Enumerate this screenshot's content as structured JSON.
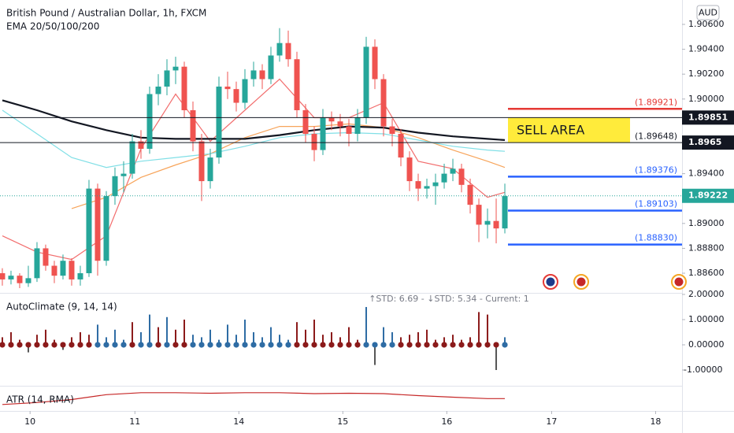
{
  "chart_data": [
    {
      "type": "candlestick",
      "title": "British Pound / Australian Dollar, 1h, FXCM",
      "subtitle": "EMA 20/50/100/200",
      "currency": "AUD",
      "up_color": "#26a69a",
      "down_color": "#ef5350",
      "xlim": [
        -0.27,
        78.45
      ],
      "xticks": [
        {
          "value": 3.2,
          "label": "10"
        },
        {
          "value": 15.3,
          "label": "11"
        },
        {
          "value": 27.3,
          "label": "14"
        },
        {
          "value": 39.3,
          "label": "15"
        },
        {
          "value": 51.3,
          "label": "16"
        },
        {
          "value": 63.4,
          "label": "17"
        },
        {
          "value": 75.4,
          "label": "18"
        }
      ],
      "ylim": [
        1.88442,
        1.90796
      ],
      "yticks": [
        {
          "value": 1.906,
          "label": "1.90600"
        },
        {
          "value": 1.904,
          "label": "1.90400"
        },
        {
          "value": 1.902,
          "label": "1.90200"
        },
        {
          "value": 1.9,
          "label": "1.90000"
        },
        {
          "value": 1.894,
          "label": "1.89400"
        },
        {
          "value": 1.89,
          "label": "1.89000"
        },
        {
          "value": 1.888,
          "label": "1.88800"
        },
        {
          "value": 1.886,
          "label": "1.88600"
        }
      ],
      "candles": [
        [
          1.886,
          1.8864,
          1.885,
          1.8855
        ],
        [
          1.8855,
          1.8862,
          1.8851,
          1.8858
        ],
        [
          1.8858,
          1.886,
          1.8848,
          1.8852
        ],
        [
          1.8852,
          1.8866,
          1.8849,
          1.8856
        ],
        [
          1.8856,
          1.8885,
          1.8853,
          1.888
        ],
        [
          1.888,
          1.8883,
          1.8862,
          1.8866
        ],
        [
          1.8866,
          1.887,
          1.8852,
          1.8858
        ],
        [
          1.8858,
          1.8875,
          1.8855,
          1.887
        ],
        [
          1.887,
          1.8872,
          1.885,
          1.8855
        ],
        [
          1.8855,
          1.8866,
          1.885,
          1.886
        ],
        [
          1.886,
          1.8935,
          1.8857,
          1.8928
        ],
        [
          1.8928,
          1.8932,
          1.8858,
          1.887
        ],
        [
          1.887,
          1.8926,
          1.8866,
          1.8922
        ],
        [
          1.8922,
          1.8945,
          1.8915,
          1.8938
        ],
        [
          1.8938,
          1.895,
          1.8925,
          1.894
        ],
        [
          1.894,
          1.8972,
          1.8936,
          1.8966
        ],
        [
          1.8966,
          1.8975,
          1.8952,
          1.896
        ],
        [
          1.896,
          1.901,
          1.8956,
          1.9004
        ],
        [
          1.9004,
          1.902,
          1.8995,
          1.901
        ],
        [
          1.901,
          1.9032,
          1.9003,
          1.9023
        ],
        [
          1.9023,
          1.9034,
          1.9012,
          1.9026
        ],
        [
          1.9026,
          1.903,
          1.8985,
          1.8991
        ],
        [
          1.8991,
          1.8998,
          1.8958,
          1.8966
        ],
        [
          1.8966,
          1.8972,
          1.8918,
          1.8934
        ],
        [
          1.8934,
          1.896,
          1.8928,
          1.8953
        ],
        [
          1.8953,
          1.9018,
          1.8948,
          1.901
        ],
        [
          1.901,
          1.9022,
          1.9,
          1.9008
        ],
        [
          1.9008,
          1.9014,
          1.899,
          1.8997
        ],
        [
          1.8997,
          1.9024,
          1.8992,
          1.9016
        ],
        [
          1.9016,
          1.903,
          1.901,
          1.9023
        ],
        [
          1.9023,
          1.9028,
          1.9008,
          1.9016
        ],
        [
          1.9016,
          1.9042,
          1.9012,
          1.9035
        ],
        [
          1.9035,
          1.9057,
          1.903,
          1.9045
        ],
        [
          1.9045,
          1.9055,
          1.9026,
          1.9032
        ],
        [
          1.9032,
          1.9038,
          1.8985,
          1.8991
        ],
        [
          1.8991,
          1.8996,
          1.8965,
          1.8972
        ],
        [
          1.8972,
          1.8978,
          1.895,
          1.8959
        ],
        [
          1.8959,
          1.8992,
          1.8955,
          1.8985
        ],
        [
          1.8985,
          1.899,
          1.8975,
          1.8982
        ],
        [
          1.8982,
          1.8988,
          1.897,
          1.8978
        ],
        [
          1.8978,
          1.8984,
          1.8962,
          1.8972
        ],
        [
          1.8972,
          1.8992,
          1.8966,
          1.8985
        ],
        [
          1.8985,
          1.905,
          1.898,
          1.9042
        ],
        [
          1.9042,
          1.9048,
          1.9008,
          1.9016
        ],
        [
          1.9016,
          1.902,
          1.897,
          1.8978
        ],
        [
          1.8978,
          1.8984,
          1.8962,
          1.8972
        ],
        [
          1.8972,
          1.8976,
          1.8946,
          1.8953
        ],
        [
          1.8953,
          1.8958,
          1.8926,
          1.8934
        ],
        [
          1.8934,
          1.894,
          1.8918,
          1.8928
        ],
        [
          1.8928,
          1.8936,
          1.892,
          1.893
        ],
        [
          1.893,
          1.894,
          1.8915,
          1.8933
        ],
        [
          1.8933,
          1.8948,
          1.8928,
          1.894
        ],
        [
          1.894,
          1.8952,
          1.8934,
          1.8944
        ],
        [
          1.8944,
          1.8948,
          1.8925,
          1.8931
        ],
        [
          1.8931,
          1.8936,
          1.8908,
          1.8915
        ],
        [
          1.8915,
          1.892,
          1.8885,
          1.8899
        ],
        [
          1.8899,
          1.8912,
          1.8888,
          1.8902
        ],
        [
          1.8902,
          1.892,
          1.8884,
          1.8896
        ],
        [
          1.8896,
          1.8932,
          1.8892,
          1.8922
        ]
      ],
      "ema_x": [
        0,
        4,
        8,
        12,
        16,
        20,
        24,
        28,
        32,
        36,
        40,
        44,
        48,
        52,
        56,
        58
      ],
      "series": [
        {
          "color": "#f26d6d",
          "values": [
            1.889,
            1.8877,
            1.8871,
            1.889,
            1.896,
            1.9004,
            1.8966,
            1.8991,
            1.9016,
            1.8985,
            1.8985,
            1.8997,
            1.895,
            1.8944,
            1.8921,
            1.8925
          ]
        },
        {
          "color": "#f7a45a",
          "values": [
            null,
            null,
            1.8912,
            1.8921,
            1.8937,
            1.8947,
            1.8956,
            1.8969,
            1.8978,
            1.8978,
            1.898,
            1.8977,
            1.8969,
            1.8959,
            1.895,
            1.8945
          ]
        },
        {
          "color": "#80dfe6",
          "values": [
            1.8991,
            1.8972,
            1.8953,
            1.8945,
            1.895,
            1.8953,
            1.8956,
            1.8962,
            1.8969,
            1.8972,
            1.8973,
            1.8972,
            1.8967,
            1.8962,
            1.8959,
            1.8958
          ]
        },
        {
          "color": "#131722",
          "values": [
            1.8999,
            1.8991,
            1.8982,
            1.8975,
            1.8969,
            1.8968,
            1.8968,
            1.8968,
            1.8971,
            1.8975,
            1.8978,
            1.8977,
            1.8973,
            1.897,
            1.8968,
            1.8967
          ]
        }
      ],
      "hlines": [
        1.89851,
        1.8965
      ],
      "levels": [
        {
          "value": 1.89921,
          "label": "(1.89921)",
          "color": "#e53935"
        },
        {
          "value": 1.89648,
          "label": "(1.89648)"
        },
        {
          "value": 1.89376,
          "label": "(1.89376)",
          "color": "#2962ff"
        },
        {
          "value": 1.89103,
          "label": "(1.89103)",
          "color": "#2962ff"
        },
        {
          "value": 1.8883,
          "label": "(1.88830)",
          "color": "#2962ff"
        }
      ],
      "annotation": "SELL AREA",
      "annotation_color": "#ffeb3b",
      "last_price": 1.89222
    },
    {
      "type": "histogram",
      "title": "AutoClimate (9, 14, 14)",
      "status": "↑STD: 6.69 - ↓STD: 5.34 - Current: 1",
      "ylim": [
        -1.625,
        2.03
      ],
      "yticks": [
        {
          "value": 2,
          "label": "2.00000"
        },
        {
          "value": 1,
          "label": "1.00000"
        },
        {
          "value": 0,
          "label": "0.00000"
        },
        {
          "value": -1,
          "label": "-1.00000"
        }
      ],
      "values": [
        0.3,
        0.5,
        0.2,
        -0.3,
        0.4,
        0.6,
        0.2,
        -0.2,
        0.3,
        0.5,
        0.4,
        0.8,
        0.3,
        0.6,
        0.2,
        0.9,
        0.5,
        1.2,
        0.7,
        1.1,
        0.6,
        1.0,
        0.4,
        0.3,
        0.6,
        0.2,
        0.8,
        0.4,
        1.0,
        0.5,
        0.3,
        0.7,
        0.4,
        0.2,
        0.9,
        0.6,
        1.0,
        0.4,
        0.5,
        0.3,
        0.7,
        0.2,
        1.5,
        -0.8,
        0.7,
        0.5,
        0.3,
        0.4,
        0.5,
        0.6,
        0.2,
        0.3,
        0.4,
        0.2,
        0.3,
        1.3,
        1.2,
        -1.0,
        0.3
      ],
      "colors": [
        "#8b1a1a",
        "#8b1a1a",
        "#8b1a1a",
        "#8b1a1a",
        "#8b1a1a",
        "#8b1a1a",
        "#8b1a1a",
        "#8b1a1a",
        "#8b1a1a",
        "#8b1a1a",
        "#8b1a1a",
        "#2e6ca4",
        "#2e6ca4",
        "#2e6ca4",
        "#2e6ca4",
        "#8b1a1a",
        "#2e6ca4",
        "#2e6ca4",
        "#8b1a1a",
        "#2e6ca4",
        "#8b1a1a",
        "#8b1a1a",
        "#2e6ca4",
        "#2e6ca4",
        "#2e6ca4",
        "#2e6ca4",
        "#2e6ca4",
        "#2e6ca4",
        "#2e6ca4",
        "#2e6ca4",
        "#2e6ca4",
        "#2e6ca4",
        "#2e6ca4",
        "#2e6ca4",
        "#8b1a1a",
        "#8b1a1a",
        "#8b1a1a",
        "#8b1a1a",
        "#8b1a1a",
        "#8b1a1a",
        "#8b1a1a",
        "#8b1a1a",
        "#2e6ca4",
        "#2e6ca4",
        "#2e6ca4",
        "#2e6ca4",
        "#8b1a1a",
        "#8b1a1a",
        "#8b1a1a",
        "#8b1a1a",
        "#8b1a1a",
        "#8b1a1a",
        "#8b1a1a",
        "#8b1a1a",
        "#8b1a1a",
        "#8b1a1a",
        "#8b1a1a",
        "#8b1a1a",
        "#2e6ca4"
      ]
    },
    {
      "type": "line",
      "title": "ATR (14, RMA)",
      "color": "#c62828",
      "ylim": [
        0,
        1
      ],
      "x": [
        0,
        4,
        8,
        12,
        16,
        20,
        24,
        28,
        32,
        36,
        40,
        44,
        48,
        52,
        56,
        58
      ],
      "values": [
        0.25,
        0.35,
        0.5,
        0.75,
        0.85,
        0.85,
        0.82,
        0.85,
        0.85,
        0.8,
        0.82,
        0.8,
        0.7,
        0.62,
        0.55,
        0.55
      ]
    }
  ]
}
